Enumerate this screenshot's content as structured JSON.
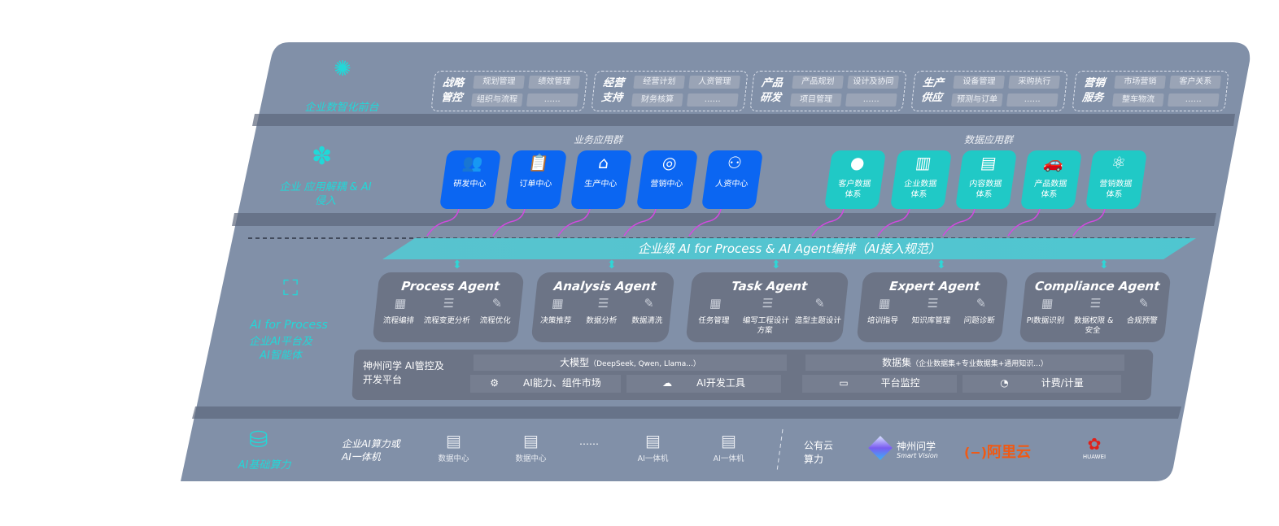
{
  "colors": {
    "panel": "#8190a8",
    "band": "#5d677c",
    "accent": "#22d8d8",
    "blue": "#0b66f2",
    "teal": "#20c9c6",
    "connector": "#d24be0"
  },
  "front": {
    "label": "企业数智化前台",
    "icon": "brain-icon",
    "categories": [
      {
        "title": "战略管控",
        "items": [
          "规划管理",
          "绩效管理",
          "组织与流程",
          "……"
        ]
      },
      {
        "title": "经营支持",
        "items": [
          "经营计划",
          "人资管理",
          "财务核算",
          "……"
        ]
      },
      {
        "title": "产品研发",
        "items": [
          "产品规划",
          "设计及协同",
          "项目管理",
          "……"
        ]
      },
      {
        "title": "生产供应",
        "items": [
          "设备管理",
          "采购执行",
          "预测与订单",
          "……"
        ]
      },
      {
        "title": "营销服务",
        "items": [
          "市场营销",
          "客户关系",
          "整车物流",
          "……"
        ]
      }
    ]
  },
  "apps": {
    "label": "企业 应用解耦 & AI 侵入",
    "icon": "molecule-icon",
    "business_title": "业务应用群",
    "business": [
      {
        "label": "研发中心",
        "icon": "people-icon"
      },
      {
        "label": "订单中心",
        "icon": "clipboard-icon"
      },
      {
        "label": "生产中心",
        "icon": "factory-icon"
      },
      {
        "label": "营销中心",
        "icon": "target-icon"
      },
      {
        "label": "人资中心",
        "icon": "person-icon"
      }
    ],
    "data_title": "数据应用群",
    "data": [
      {
        "label": "客户数据体系",
        "icon": "user-icon"
      },
      {
        "label": "企业数据体系",
        "icon": "building-icon"
      },
      {
        "label": "内容数据体系",
        "icon": "books-icon"
      },
      {
        "label": "产品数据体系",
        "icon": "car-icon"
      },
      {
        "label": "营销数据体系",
        "icon": "atom-icon"
      }
    ]
  },
  "banner": "企业级 AI for Process & AI Agent编排（AI接入规范）",
  "ai_layer": {
    "label_en": "AI for Process",
    "label_cn": "企业AI平台及AI智能体",
    "icon": "face-scan-icon",
    "agents": [
      {
        "name": "Process Agent",
        "features": [
          "流程编排",
          "流程变更分析",
          "流程优化"
        ]
      },
      {
        "name": "Analysis Agent",
        "features": [
          "决策推荐",
          "数据分析",
          "数据清洗"
        ]
      },
      {
        "name": "Task Agent",
        "features": [
          "任务管理",
          "编写工程设计方案",
          "造型主题设计"
        ]
      },
      {
        "name": "Expert Agent",
        "features": [
          "培训指导",
          "知识库管理",
          "问题诊断"
        ]
      },
      {
        "name": "Compliance Agent",
        "features": [
          "PI数据识别",
          "数据权限 & 安全",
          "合规预警"
        ]
      }
    ],
    "platform": {
      "title": "神州问学 AI管控及开发平台",
      "model": "大模型",
      "model_note": "（DeepSeek, Qwen, Llama...）",
      "market": "AI能力、组件市场",
      "devtools": "AI开发工具",
      "dataset": "数据集",
      "dataset_note": "（企业数据集+专业数据集+通用知识...）",
      "monitor": "平台监控",
      "billing": "计费/计量"
    }
  },
  "infra": {
    "label": "AI基础算力",
    "icon": "database-icon",
    "private_title": "企业AI算力或AI一体机",
    "items": [
      "数据中心",
      "数据中心",
      "AI一体机",
      "AI一体机"
    ],
    "ellipsis": "……",
    "public_title": "公有云算力",
    "vendors": [
      "神州问学",
      "Smart Vision",
      "阿里云",
      "HUAWEI"
    ]
  }
}
